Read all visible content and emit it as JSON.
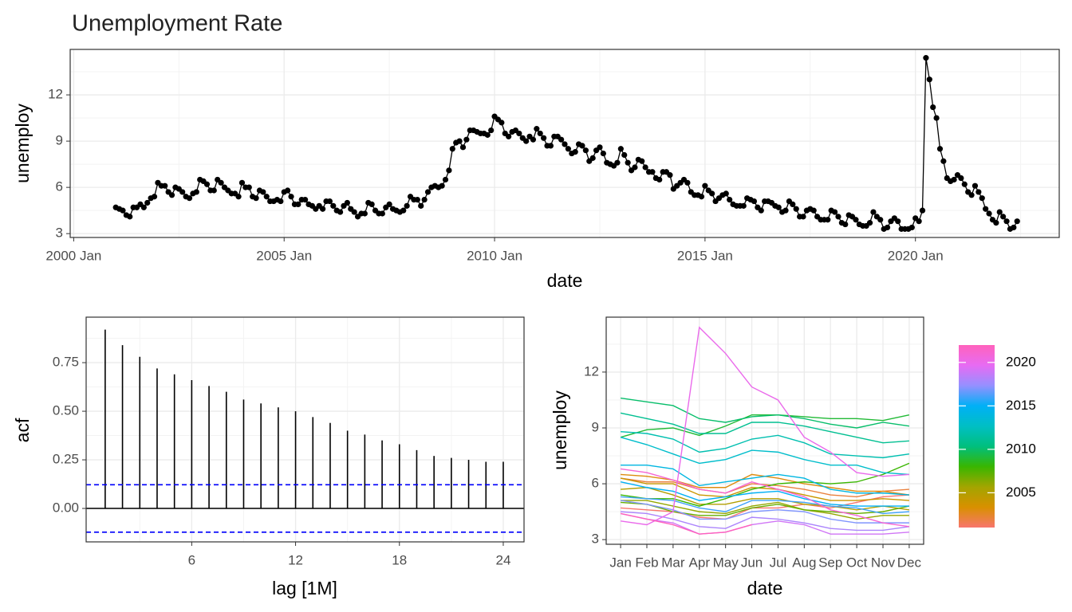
{
  "chart_data": [
    {
      "type": "line",
      "title": "Unemployment Rate",
      "xlabel": "date",
      "ylabel": "unemploy",
      "color": "#000000",
      "x": [
        "2001 Jan",
        "2001 Feb",
        "2001 Mar",
        "2001 Apr",
        "2001 May",
        "2001 Jun",
        "2001 Jul",
        "2001 Aug",
        "2001 Sep",
        "2001 Oct",
        "2001 Nov",
        "2001 Dec",
        "2002 Jan",
        "2002 Feb",
        "2002 Mar",
        "2002 Apr",
        "2002 May",
        "2002 Jun",
        "2002 Jul",
        "2002 Aug",
        "2002 Sep",
        "2002 Oct",
        "2002 Nov",
        "2002 Dec",
        "2003 Jan",
        "2003 Feb",
        "2003 Mar",
        "2003 Apr",
        "2003 May",
        "2003 Jun",
        "2003 Jul",
        "2003 Aug",
        "2003 Sep",
        "2003 Oct",
        "2003 Nov",
        "2003 Dec",
        "2004 Jan",
        "2004 Feb",
        "2004 Mar",
        "2004 Apr",
        "2004 May",
        "2004 Jun",
        "2004 Jul",
        "2004 Aug",
        "2004 Sep",
        "2004 Oct",
        "2004 Nov",
        "2004 Dec",
        "2005 Jan",
        "2005 Feb",
        "2005 Mar",
        "2005 Apr",
        "2005 May",
        "2005 Jun",
        "2005 Jul",
        "2005 Aug",
        "2005 Sep",
        "2005 Oct",
        "2005 Nov",
        "2005 Dec",
        "2006 Jan",
        "2006 Feb",
        "2006 Mar",
        "2006 Apr",
        "2006 May",
        "2006 Jun",
        "2006 Jul",
        "2006 Aug",
        "2006 Sep",
        "2006 Oct",
        "2006 Nov",
        "2006 Dec",
        "2007 Jan",
        "2007 Feb",
        "2007 Mar",
        "2007 Apr",
        "2007 May",
        "2007 Jun",
        "2007 Jul",
        "2007 Aug",
        "2007 Sep",
        "2007 Oct",
        "2007 Nov",
        "2007 Dec",
        "2008 Jan",
        "2008 Feb",
        "2008 Mar",
        "2008 Apr",
        "2008 May",
        "2008 Jun",
        "2008 Jul",
        "2008 Aug",
        "2008 Sep",
        "2008 Oct",
        "2008 Nov",
        "2008 Dec",
        "2009 Jan",
        "2009 Feb",
        "2009 Mar",
        "2009 Apr",
        "2009 May",
        "2009 Jun",
        "2009 Jul",
        "2009 Aug",
        "2009 Sep",
        "2009 Oct",
        "2009 Nov",
        "2009 Dec",
        "2010 Jan",
        "2010 Feb",
        "2010 Mar",
        "2010 Apr",
        "2010 May",
        "2010 Jun",
        "2010 Jul",
        "2010 Aug",
        "2010 Sep",
        "2010 Oct",
        "2010 Nov",
        "2010 Dec",
        "2011 Jan",
        "2011 Feb",
        "2011 Mar",
        "2011 Apr",
        "2011 May",
        "2011 Jun",
        "2011 Jul",
        "2011 Aug",
        "2011 Sep",
        "2011 Oct",
        "2011 Nov",
        "2011 Dec",
        "2012 Jan",
        "2012 Feb",
        "2012 Mar",
        "2012 Apr",
        "2012 May",
        "2012 Jun",
        "2012 Jul",
        "2012 Aug",
        "2012 Sep",
        "2012 Oct",
        "2012 Nov",
        "2012 Dec",
        "2013 Jan",
        "2013 Feb",
        "2013 Mar",
        "2013 Apr",
        "2013 May",
        "2013 Jun",
        "2013 Jul",
        "2013 Aug",
        "2013 Sep",
        "2013 Oct",
        "2013 Nov",
        "2013 Dec",
        "2014 Jan",
        "2014 Feb",
        "2014 Mar",
        "2014 Apr",
        "2014 May",
        "2014 Jun",
        "2014 Jul",
        "2014 Aug",
        "2014 Sep",
        "2014 Oct",
        "2014 Nov",
        "2014 Dec",
        "2015 Jan",
        "2015 Feb",
        "2015 Mar",
        "2015 Apr",
        "2015 May",
        "2015 Jun",
        "2015 Jul",
        "2015 Aug",
        "2015 Sep",
        "2015 Oct",
        "2015 Nov",
        "2015 Dec",
        "2016 Jan",
        "2016 Feb",
        "2016 Mar",
        "2016 Apr",
        "2016 May",
        "2016 Jun",
        "2016 Jul",
        "2016 Aug",
        "2016 Sep",
        "2016 Oct",
        "2016 Nov",
        "2016 Dec",
        "2017 Jan",
        "2017 Feb",
        "2017 Mar",
        "2017 Apr",
        "2017 May",
        "2017 Jun",
        "2017 Jul",
        "2017 Aug",
        "2017 Sep",
        "2017 Oct",
        "2017 Nov",
        "2017 Dec",
        "2018 Jan",
        "2018 Feb",
        "2018 Mar",
        "2018 Apr",
        "2018 May",
        "2018 Jun",
        "2018 Jul",
        "2018 Aug",
        "2018 Sep",
        "2018 Oct",
        "2018 Nov",
        "2018 Dec",
        "2019 Jan",
        "2019 Feb",
        "2019 Mar",
        "2019 Apr",
        "2019 May",
        "2019 Jun",
        "2019 Jul",
        "2019 Aug",
        "2019 Sep",
        "2019 Oct",
        "2019 Nov",
        "2019 Dec",
        "2020 Jan",
        "2020 Feb",
        "2020 Mar",
        "2020 Apr",
        "2020 May",
        "2020 Jun",
        "2020 Jul",
        "2020 Aug",
        "2020 Sep",
        "2020 Oct",
        "2020 Nov",
        "2020 Dec",
        "2021 Jan",
        "2021 Feb",
        "2021 Mar",
        "2021 Apr",
        "2021 May",
        "2021 Jun",
        "2021 Jul",
        "2021 Aug",
        "2021 Sep",
        "2021 Oct",
        "2021 Nov",
        "2021 Dec",
        "2022 Jan",
        "2022 Feb",
        "2022 Mar",
        "2022 Apr",
        "2022 May",
        "2022 Jun"
      ],
      "values": [
        4.7,
        4.6,
        4.5,
        4.2,
        4.1,
        4.7,
        4.7,
        4.9,
        4.7,
        5.0,
        5.3,
        5.4,
        6.3,
        6.1,
        6.1,
        5.7,
        5.5,
        6.0,
        5.9,
        5.7,
        5.4,
        5.3,
        5.6,
        5.7,
        6.5,
        6.4,
        6.2,
        5.8,
        5.8,
        6.5,
        6.3,
        6.0,
        5.8,
        5.6,
        5.6,
        5.4,
        6.3,
        6.0,
        6.0,
        5.4,
        5.3,
        5.8,
        5.7,
        5.4,
        5.1,
        5.1,
        5.2,
        5.1,
        5.7,
        5.8,
        5.4,
        4.9,
        4.9,
        5.2,
        5.2,
        4.9,
        4.8,
        4.6,
        4.8,
        4.6,
        5.1,
        5.1,
        4.8,
        4.5,
        4.4,
        4.8,
        5.0,
        4.6,
        4.4,
        4.1,
        4.3,
        4.3,
        5.0,
        4.9,
        4.5,
        4.3,
        4.3,
        4.7,
        4.9,
        4.6,
        4.5,
        4.4,
        4.5,
        4.8,
        5.4,
        5.2,
        5.2,
        4.8,
        5.2,
        5.7,
        6.0,
        6.1,
        6.0,
        6.1,
        6.5,
        7.1,
        8.5,
        8.9,
        9.0,
        8.6,
        9.1,
        9.7,
        9.7,
        9.6,
        9.5,
        9.5,
        9.4,
        9.7,
        10.6,
        10.4,
        10.2,
        9.5,
        9.3,
        9.6,
        9.7,
        9.5,
        9.2,
        9.0,
        9.3,
        9.1,
        9.8,
        9.5,
        9.2,
        8.7,
        8.7,
        9.3,
        9.3,
        9.1,
        8.8,
        8.5,
        8.2,
        8.3,
        8.8,
        8.7,
        8.4,
        7.7,
        7.9,
        8.4,
        8.6,
        8.2,
        7.6,
        7.5,
        7.4,
        7.6,
        8.5,
        8.1,
        7.6,
        7.1,
        7.3,
        7.8,
        7.7,
        7.3,
        7.0,
        7.0,
        6.6,
        6.5,
        7.0,
        7.0,
        6.8,
        5.9,
        6.1,
        6.3,
        6.5,
        6.3,
        5.7,
        5.5,
        5.5,
        5.4,
        6.1,
        5.8,
        5.6,
        5.1,
        5.3,
        5.5,
        5.6,
        5.2,
        4.9,
        4.8,
        4.8,
        4.8,
        5.3,
        5.2,
        5.1,
        4.7,
        4.5,
        5.1,
        5.1,
        5.0,
        4.8,
        4.7,
        4.4,
        4.5,
        5.1,
        4.9,
        4.6,
        4.1,
        4.1,
        4.5,
        4.6,
        4.5,
        4.1,
        3.9,
        3.9,
        3.9,
        4.5,
        4.4,
        4.1,
        3.7,
        3.6,
        4.2,
        4.1,
        3.9,
        3.6,
        3.5,
        3.5,
        3.7,
        4.4,
        4.1,
        3.9,
        3.3,
        3.4,
        3.8,
        4.0,
        3.8,
        3.3,
        3.3,
        3.3,
        3.4,
        4.0,
        3.8,
        4.5,
        14.4,
        13.0,
        11.2,
        10.5,
        8.5,
        7.7,
        6.6,
        6.4,
        6.5,
        6.8,
        6.6,
        6.2,
        5.7,
        5.5,
        6.1,
        5.7,
        5.3,
        4.6,
        4.3,
        3.9,
        3.7,
        4.4,
        4.1,
        3.8,
        3.3,
        3.4,
        3.8
      ],
      "xlim": [
        "1999 Dec",
        "2023 Jun"
      ],
      "xticks": [
        "2000 Jan",
        "2005 Jan",
        "2010 Jan",
        "2015 Jan",
        "2020 Jan"
      ],
      "ylim": [
        2.75,
        14.95
      ],
      "yticks": [
        3,
        6,
        9,
        12
      ],
      "grid": true
    },
    {
      "type": "acf",
      "xlabel": "lag [1M]",
      "ylabel": "acf",
      "color": "#000000",
      "x": [
        1,
        2,
        3,
        4,
        5,
        6,
        7,
        8,
        9,
        10,
        11,
        12,
        13,
        14,
        15,
        16,
        17,
        18,
        19,
        20,
        21,
        22,
        23,
        24
      ],
      "values": [
        0.92,
        0.84,
        0.78,
        0.72,
        0.69,
        0.66,
        0.63,
        0.6,
        0.56,
        0.54,
        0.52,
        0.5,
        0.47,
        0.44,
        0.4,
        0.38,
        0.35,
        0.33,
        0.3,
        0.27,
        0.26,
        0.25,
        0.24,
        0.24
      ],
      "confidence_bounds": [
        0.122,
        -0.122
      ],
      "confidence_color": "#0000ff",
      "xlim": [
        -0.1,
        25.2
      ],
      "xticks": [
        6,
        12,
        18,
        24
      ],
      "ylim": [
        -0.172,
        0.984
      ],
      "yticks": [
        {
          "value": 0,
          "label": "0.00"
        },
        0.25,
        {
          "value": 0.5,
          "label": "0.50"
        },
        0.75
      ],
      "grid": true
    },
    {
      "type": "seasonal",
      "xlabel": "date",
      "ylabel": "unemploy",
      "categories": [
        "Jan",
        "Feb",
        "Mar",
        "Apr",
        "May",
        "Jun",
        "Jul",
        "Aug",
        "Sep",
        "Oct",
        "Nov",
        "Dec"
      ],
      "ylim": [
        2.75,
        14.95
      ],
      "yticks": [
        3,
        6,
        9,
        12
      ],
      "grid": true,
      "colorbar": {
        "lim": [
          2001,
          2022
        ],
        "ticks": [
          2005,
          2010,
          2015,
          2020
        ],
        "colors": [
          "#F8766D",
          "#D89000",
          "#A3A500",
          "#39B600",
          "#00BF7D",
          "#00BFC4",
          "#00B0F6",
          "#9590FF",
          "#E76BF3",
          "#FF62BC"
        ]
      }
    }
  ]
}
